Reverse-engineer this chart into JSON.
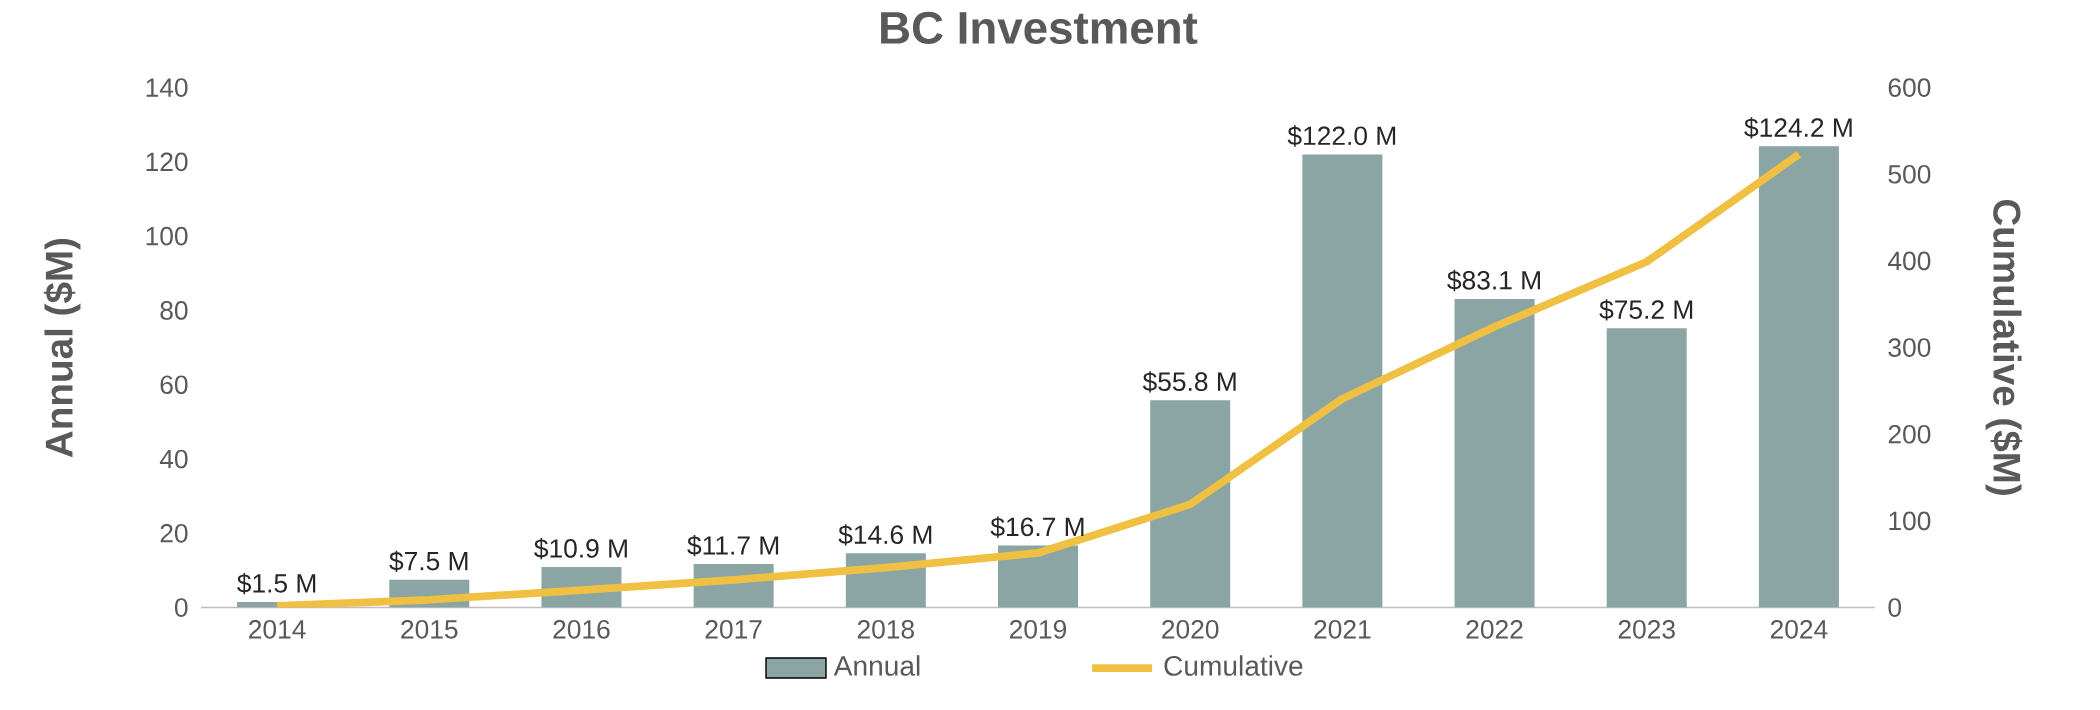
{
  "chart_data": {
    "type": "bar",
    "title": "BC Investment",
    "ylabel": "Annual ($M)",
    "y2label": "Cumulative ($M)",
    "categories": [
      "2014",
      "2015",
      "2016",
      "2017",
      "2018",
      "2019",
      "2020",
      "2021",
      "2022",
      "2023",
      "2024"
    ],
    "series": [
      {
        "name": "Annual",
        "type": "bar",
        "color": "#8aa5a4",
        "values": [
          1.5,
          7.5,
          10.9,
          11.7,
          14.6,
          16.7,
          55.8,
          122.0,
          83.1,
          75.2,
          124.2
        ],
        "value_labels": [
          "$1.5 M",
          "$7.5 M",
          "$10.9 M",
          "$11.7 M",
          "$14.6 M",
          "$16.7 M",
          "$55.8 M",
          "$122.0 M",
          "$83.1 M",
          "$75.2 M",
          "$124.2 M"
        ]
      },
      {
        "name": "Cumulative",
        "type": "line",
        "axis": "y2",
        "color": "#f0c043",
        "values": [
          2,
          9,
          20,
          32,
          46,
          63,
          119,
          241,
          324,
          399,
          523
        ]
      }
    ],
    "ylim": [
      0,
      140
    ],
    "yticks": [
      0,
      20,
      40,
      60,
      80,
      100,
      120,
      140
    ],
    "y2lim": [
      0,
      600
    ],
    "y2ticks": [
      0,
      100,
      200,
      300,
      400,
      500,
      600
    ],
    "legend": "bottom",
    "grid": false
  }
}
